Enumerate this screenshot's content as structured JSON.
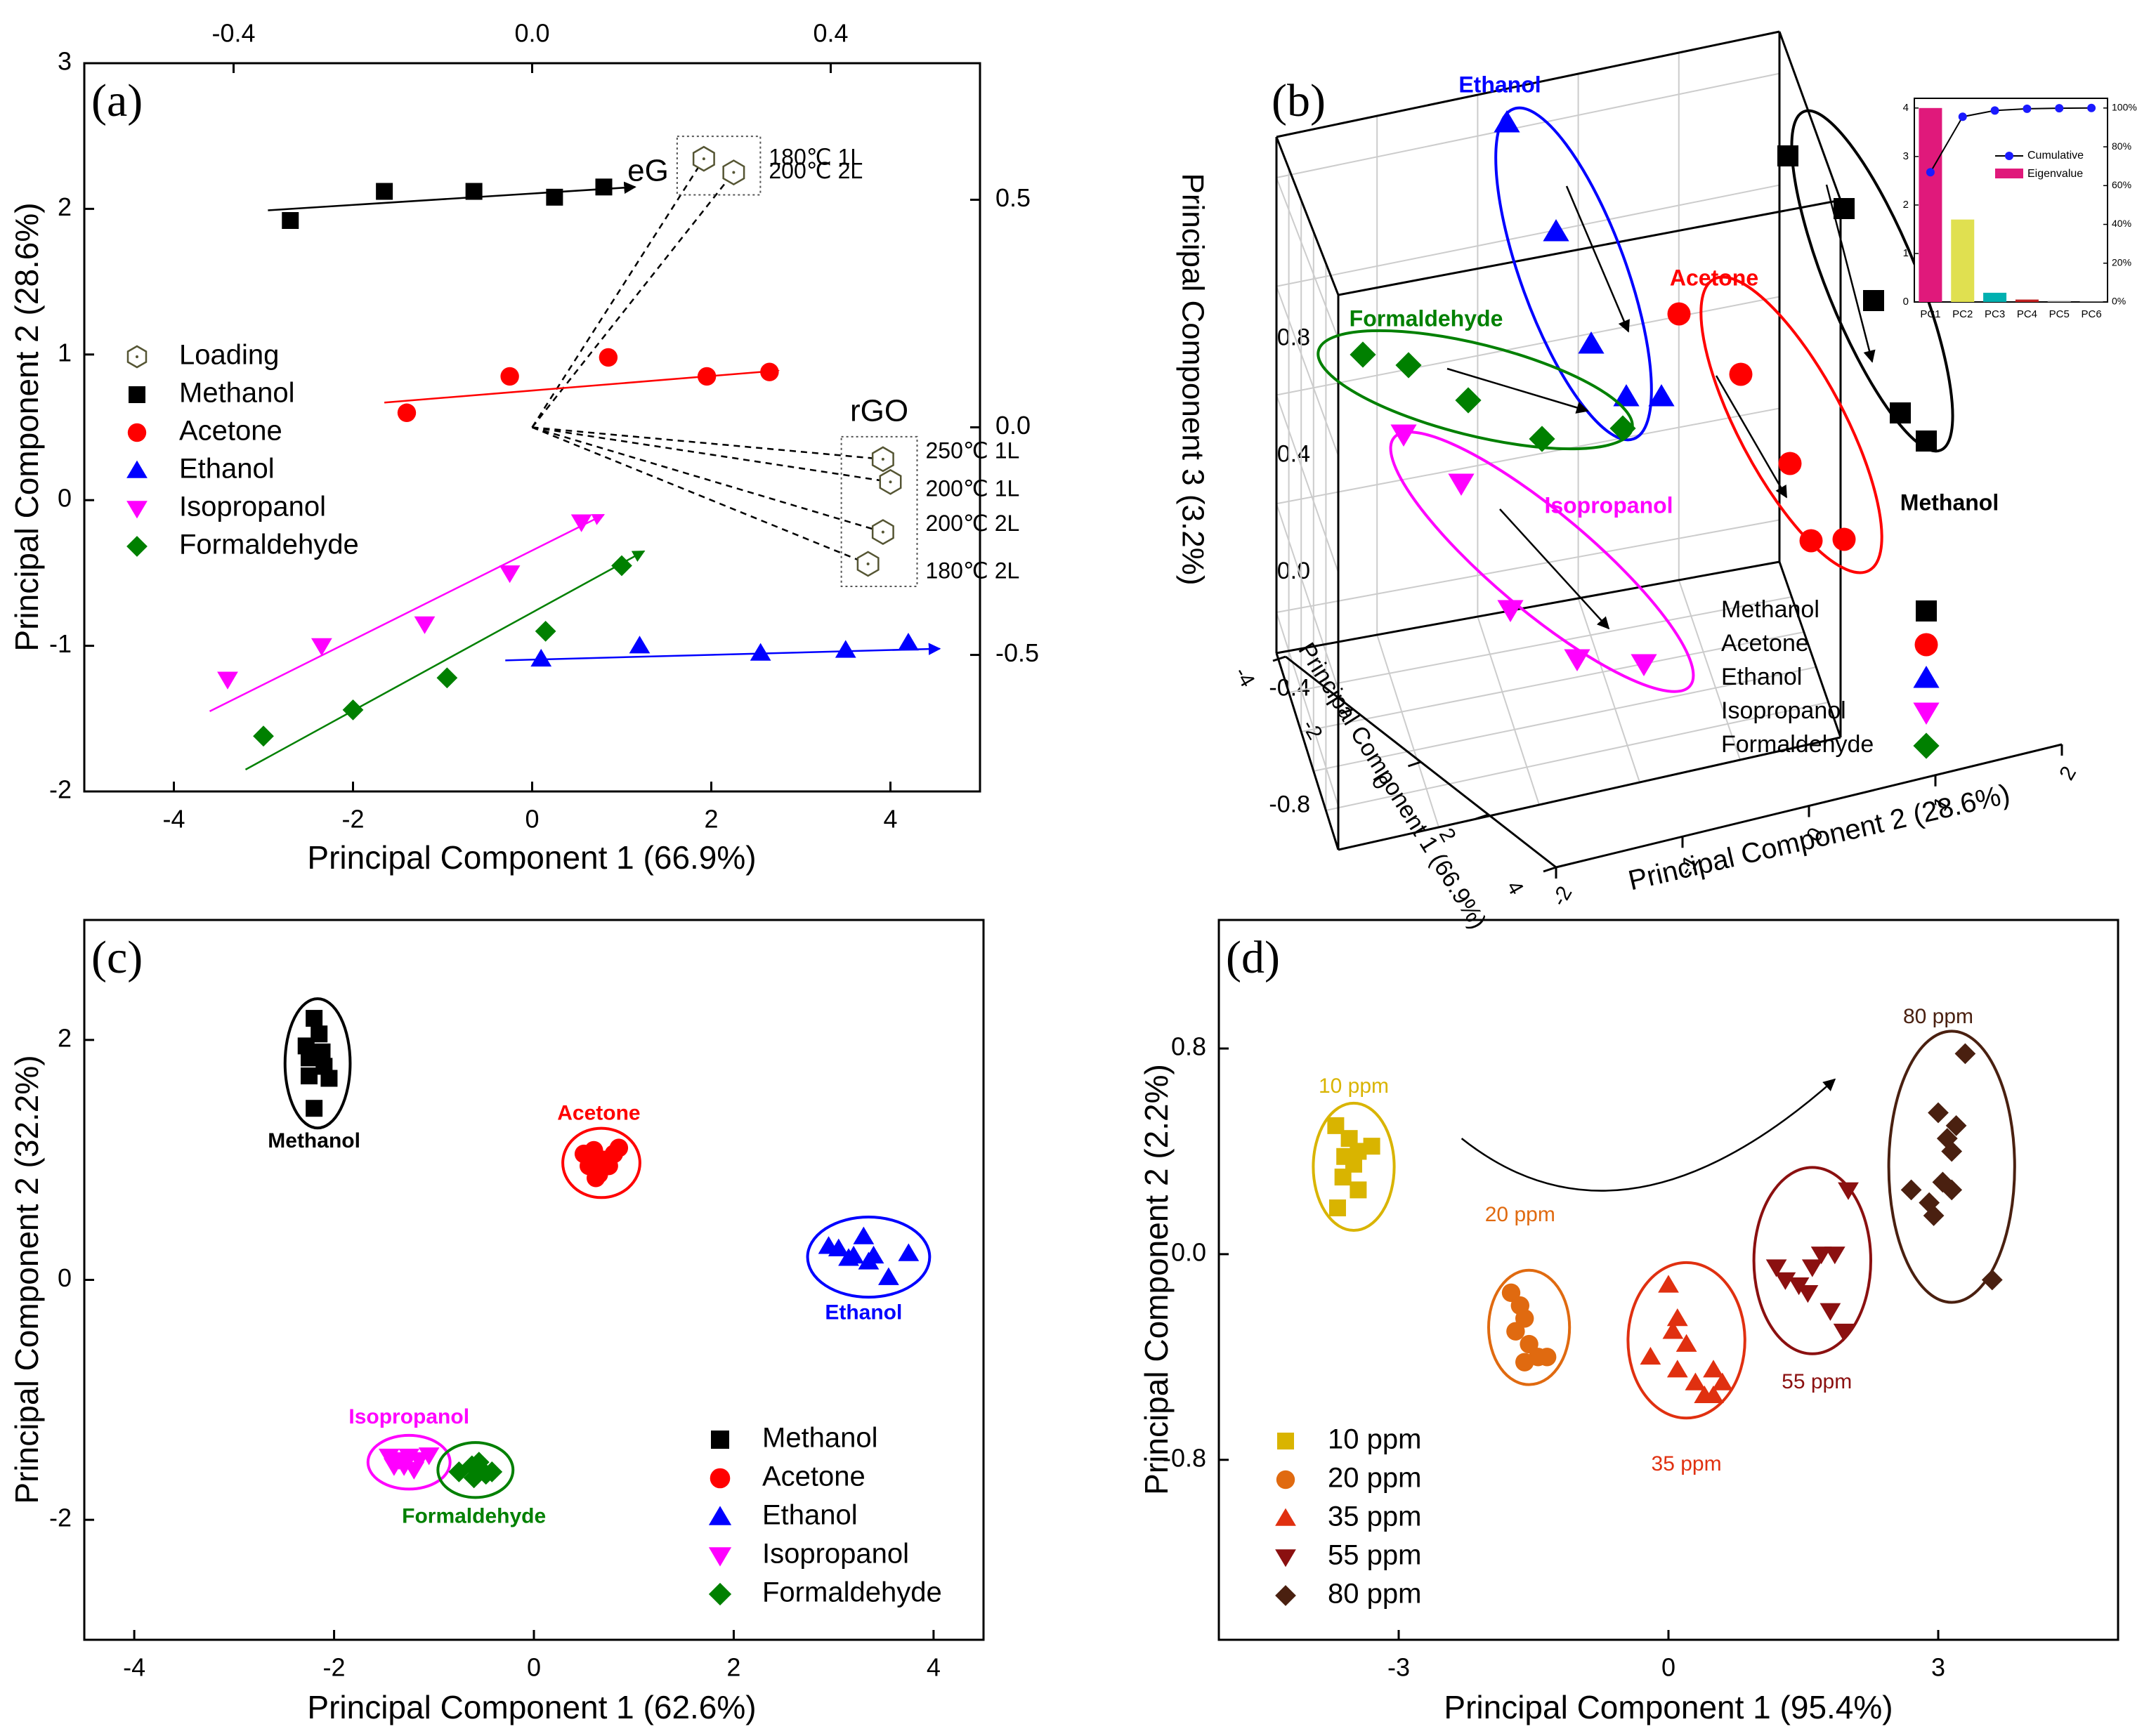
{
  "colors": {
    "methanol": "#000000",
    "acetone": "#ff0000",
    "ethanol": "#0000ff",
    "isopropanol": "#ff00ff",
    "formaldehyde": "#008000",
    "eigenvalue": "#e0197b",
    "cumulative": "#1a1aff",
    "ppm10": "#d9b400",
    "ppm20": "#e06a10",
    "ppm35": "#e03010",
    "ppm55": "#8b1010",
    "ppm80": "#4a2010"
  },
  "chart_data": [
    {
      "panel": "(a)",
      "type": "scatter",
      "xlabel": "Principal Component 1 (66.9%)",
      "ylabel": "Principal Component 2 (28.6%)",
      "xlim": [
        -5,
        5
      ],
      "ylim": [
        -2,
        3
      ],
      "x_ticks": [
        -4,
        -2,
        0,
        2,
        4
      ],
      "y_ticks": [
        -2,
        -1,
        0,
        1,
        2,
        3
      ],
      "top_axis": {
        "lim": [
          -0.6,
          0.6
        ],
        "ticks": [
          -0.4,
          0.0,
          0.4
        ],
        "tick_labels": [
          "-0.4",
          "0.0",
          "0.4"
        ]
      },
      "right_axis": {
        "lim": [
          -0.8,
          0.8
        ],
        "ticks": [
          0.5,
          0.0,
          -0.5
        ],
        "tick_labels": [
          "0.5",
          "0.0",
          "-0.5"
        ]
      },
      "legend": [
        "Loading",
        "Methanol",
        "Acetone",
        "Ethanol",
        "Isopropanol",
        "Formaldehyde"
      ],
      "legend_position": "left",
      "series": [
        {
          "name": "Methanol",
          "marker": "square",
          "x": [
            -2.7,
            -1.65,
            -0.65,
            0.25,
            0.8
          ],
          "y": [
            1.92,
            2.12,
            2.12,
            2.08,
            2.15
          ],
          "trend": [
            [
              -2.95,
              1.99
            ],
            [
              1.15,
              2.15
            ]
          ]
        },
        {
          "name": "Acetone",
          "marker": "circle",
          "x": [
            -1.4,
            -0.25,
            0.85,
            1.95,
            2.65
          ],
          "y": [
            0.6,
            0.85,
            0.98,
            0.85,
            0.88
          ],
          "trend": [
            [
              -1.65,
              0.67
            ],
            [
              2.75,
              0.89
            ]
          ]
        },
        {
          "name": "Ethanol",
          "marker": "triangle-up",
          "x": [
            0.1,
            1.2,
            2.55,
            3.5,
            4.2
          ],
          "y": [
            -1.09,
            -1.0,
            -1.05,
            -1.03,
            -0.98
          ],
          "trend": [
            [
              -0.3,
              -1.1
            ],
            [
              4.55,
              -1.02
            ]
          ]
        },
        {
          "name": "Isopropanol",
          "marker": "triangle-down",
          "x": [
            -3.4,
            -2.35,
            -1.2,
            -0.25,
            0.55
          ],
          "y": [
            -1.23,
            -1.0,
            -0.85,
            -0.5,
            -0.15
          ],
          "trend": [
            [
              -3.6,
              -1.45
            ],
            [
              0.8,
              -0.1
            ]
          ]
        },
        {
          "name": "Formaldehyde",
          "marker": "diamond",
          "x": [
            -3.0,
            -2.0,
            -0.95,
            0.15,
            1.0
          ],
          "y": [
            -1.62,
            -1.44,
            -1.22,
            -0.9,
            -0.45
          ],
          "trend": [
            [
              -3.2,
              -1.85
            ],
            [
              1.25,
              -0.35
            ]
          ]
        }
      ],
      "loadings": {
        "origin": [
          0.0,
          0.0
        ],
        "points": [
          {
            "label": "180℃ 1L",
            "group": "eG",
            "x": 0.23,
            "y": 0.59
          },
          {
            "label": "200℃ 2L",
            "group": "eG",
            "x": 0.27,
            "y": 0.56
          },
          {
            "label": "250℃ 1L",
            "group": "rGO",
            "x": 0.47,
            "y": -0.07
          },
          {
            "label": "200℃ 1L",
            "group": "rGO",
            "x": 0.48,
            "y": -0.12
          },
          {
            "label": "200℃ 2L",
            "group": "rGO",
            "x": 0.47,
            "y": -0.23
          },
          {
            "label": "180℃ 2L",
            "group": "rGO",
            "x": 0.45,
            "y": -0.3
          }
        ],
        "group_labels": [
          "eG",
          "rGO"
        ]
      }
    },
    {
      "panel": "(b)",
      "type": "scatter",
      "xlabel": "Principal Component 1 (66.9%)",
      "ylabel": "Principal Component 3 (3.2%)",
      "zlabel": "Principal Component 2 (28.6%)",
      "y_ticks": [
        0.8,
        0.4,
        0.0,
        -0.4,
        -0.8
      ],
      "y_tick_labels": [
        "0.8",
        "0.4",
        "0.0",
        "-0.4",
        "-0.8"
      ],
      "x_tick_labels": [
        "-4",
        "-2",
        "0",
        "2",
        "4"
      ],
      "z_tick_labels": [
        "-2",
        "-1",
        "0",
        "1",
        "2"
      ],
      "legend": [
        "Methanol",
        "Acetone",
        "Ethanol",
        "Isopropanol",
        "Formaldehyde"
      ],
      "legend_position": "bottom-right",
      "group_labels": [
        "Ethanol",
        "Acetone",
        "Formaldehyde",
        "Isopropanol",
        "Methanol"
      ],
      "inset": {
        "type": "bar",
        "categories": [
          "PC1",
          "PC2",
          "PC3",
          "PC4",
          "PC5",
          "PC6"
        ],
        "eigenvalue": [
          4.0,
          1.7,
          0.19,
          0.05,
          0.02,
          0.01
        ],
        "cumulative_percent": [
          66.9,
          95.5,
          98.7,
          99.6,
          99.9,
          100.0
        ],
        "left_ticks": [
          0,
          1,
          2,
          3,
          4
        ],
        "right_tick_labels": [
          "0%",
          "20%",
          "40%",
          "60%",
          "80%",
          "100%"
        ],
        "legend": [
          "Cumulative",
          "Eigenvalue"
        ]
      }
    },
    {
      "panel": "(c)",
      "type": "scatter",
      "xlabel": "Principal Component 1 (62.6%)",
      "ylabel": "Principal Component 2 (32.2%)",
      "xlim": [
        -4.5,
        4.5
      ],
      "ylim": [
        -3,
        3
      ],
      "x_ticks": [
        -4,
        -2,
        0,
        2,
        4
      ],
      "y_ticks": [
        -2,
        0,
        2
      ],
      "legend": [
        "Methanol",
        "Acetone",
        "Ethanol",
        "Isopropanol",
        "Formaldehyde"
      ],
      "legend_position": "bottom-right",
      "series": [
        {
          "name": "Methanol",
          "marker": "square",
          "x": [
            -2.2,
            -2.15,
            -2.28,
            -2.12,
            -2.25,
            -2.1,
            -2.25,
            -2.05,
            -2.2
          ],
          "y": [
            2.18,
            2.05,
            1.95,
            1.9,
            1.85,
            1.78,
            1.7,
            1.68,
            1.43
          ]
        },
        {
          "name": "Acetone",
          "marker": "circle",
          "x": [
            0.5,
            0.6,
            0.7,
            0.8,
            0.55,
            0.75,
            0.65,
            0.85,
            0.62
          ],
          "y": [
            1.05,
            1.08,
            1.0,
            1.05,
            0.95,
            0.95,
            0.88,
            1.1,
            0.85
          ]
        },
        {
          "name": "Ethanol",
          "marker": "triangle-up",
          "x": [
            2.95,
            3.05,
            3.2,
            3.3,
            3.4,
            3.15,
            3.35,
            3.55,
            3.75
          ],
          "y": [
            0.28,
            0.26,
            0.2,
            0.36,
            0.2,
            0.18,
            0.15,
            0.02,
            0.22
          ]
        },
        {
          "name": "Isopropanol",
          "marker": "triangle-down",
          "x": [
            -1.45,
            -1.35,
            -1.25,
            -1.15,
            -1.3,
            -1.2,
            -1.4,
            -1.05
          ],
          "y": [
            -1.47,
            -1.5,
            -1.47,
            -1.5,
            -1.55,
            -1.58,
            -1.55,
            -1.46
          ]
        },
        {
          "name": "Formaldehyde",
          "marker": "diamond",
          "x": [
            -0.75,
            -0.62,
            -0.55,
            -0.48,
            -0.6,
            -0.42,
            -0.55
          ],
          "y": [
            -1.6,
            -1.55,
            -1.58,
            -1.62,
            -1.65,
            -1.6,
            -1.52
          ]
        }
      ],
      "group_labels": [
        "Methanol",
        "Acetone",
        "Ethanol",
        "Isopropanol",
        "Formaldehyde"
      ]
    },
    {
      "panel": "(d)",
      "type": "scatter",
      "xlabel": "Principal Component 1 (95.4%)",
      "ylabel": "Principal Component 2 (2.2%)",
      "xlim": [
        -5,
        5
      ],
      "ylim": [
        -1.5,
        1.3
      ],
      "x_ticks": [
        -3,
        0,
        3
      ],
      "y_ticks": [
        0.8,
        0.0,
        -0.8
      ],
      "y_tick_labels": [
        "0.8",
        "0.0",
        "-0.8"
      ],
      "legend": [
        "10 ppm",
        "20 ppm",
        "35 ppm",
        "55 ppm",
        "80 ppm"
      ],
      "legend_position": "bottom-left",
      "series": [
        {
          "name": "10 ppm",
          "marker": "square",
          "x": [
            -3.7,
            -3.55,
            -3.45,
            -3.6,
            -3.3,
            -3.5,
            -3.62,
            -3.45,
            -3.68
          ],
          "y": [
            0.5,
            0.45,
            0.4,
            0.38,
            0.42,
            0.35,
            0.3,
            0.25,
            0.18
          ]
        },
        {
          "name": "20 ppm",
          "marker": "circle",
          "x": [
            -1.75,
            -1.65,
            -1.6,
            -1.7,
            -1.55,
            -1.45,
            -1.6,
            -1.35
          ],
          "y": [
            -0.15,
            -0.2,
            -0.25,
            -0.3,
            -0.35,
            -0.4,
            -0.42,
            -0.4
          ]
        },
        {
          "name": "35 ppm",
          "marker": "triangle-up",
          "x": [
            -0.2,
            0.0,
            0.1,
            0.05,
            0.2,
            0.1,
            0.3,
            0.5,
            0.4,
            0.6,
            0.5
          ],
          "y": [
            -0.4,
            -0.12,
            -0.25,
            -0.3,
            -0.35,
            -0.45,
            -0.5,
            -0.45,
            -0.55,
            -0.5,
            -0.55
          ]
        },
        {
          "name": "55 ppm",
          "marker": "triangle-down",
          "x": [
            1.2,
            1.3,
            1.45,
            1.6,
            1.7,
            1.85,
            2.0,
            1.55,
            1.8,
            1.95
          ],
          "y": [
            -0.05,
            -0.1,
            -0.12,
            -0.05,
            0.0,
            0.0,
            0.25,
            -0.15,
            -0.22,
            -0.3
          ]
        },
        {
          "name": "80 ppm",
          "marker": "diamond",
          "x": [
            2.7,
            2.9,
            3.0,
            3.1,
            3.15,
            3.2,
            3.3,
            3.05,
            2.95,
            3.15,
            3.6
          ],
          "y": [
            0.25,
            0.2,
            0.55,
            0.45,
            0.4,
            0.5,
            0.78,
            0.28,
            0.15,
            0.25,
            -0.1
          ]
        }
      ],
      "group_labels": [
        "10 ppm",
        "20 ppm",
        "35 ppm",
        "55 ppm",
        "80 ppm"
      ]
    }
  ]
}
